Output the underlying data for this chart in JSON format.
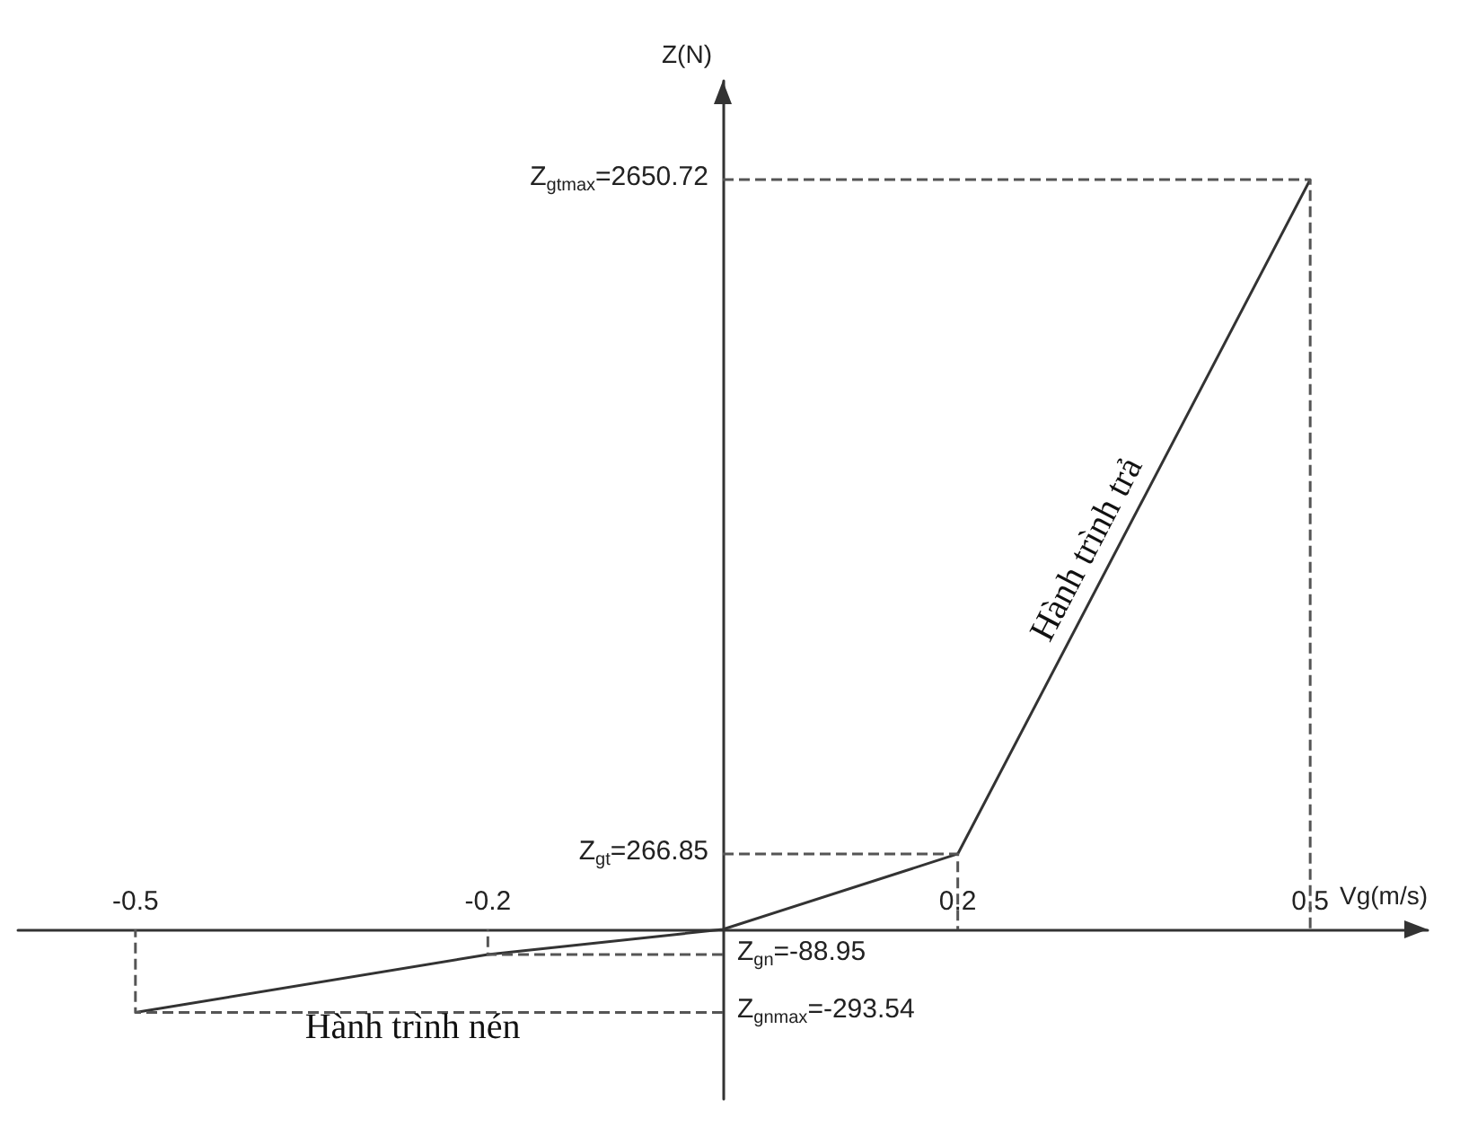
{
  "chart_data": {
    "type": "line",
    "x": [
      -0.5,
      -0.2,
      0,
      0.2,
      0.5
    ],
    "marker": "none",
    "line_style": "solid",
    "series": [
      {
        "values": [
          -293.54,
          -88.95,
          0,
          266.85,
          2650.72
        ],
        "color": "#333333"
      },
      {
        "x": [
          0,
          0.5,
          0.5
        ],
        "values": [
          2650.72,
          2650.72,
          0
        ],
        "color": "#555555",
        "line_style": "dashed"
      },
      {
        "x": [
          0,
          0.2,
          0.2
        ],
        "values": [
          266.85,
          266.85,
          0
        ],
        "color": "#555555",
        "line_style": "dashed"
      },
      {
        "x": [
          0,
          -0.2,
          -0.2
        ],
        "values": [
          -88.95,
          -88.95,
          0
        ],
        "color": "#555555",
        "line_style": "dashed"
      },
      {
        "x": [
          0,
          -0.5,
          -0.5
        ],
        "values": [
          -293.54,
          -293.54,
          0
        ],
        "color": "#555555",
        "line_style": "dashed"
      }
    ],
    "xlabel": "Vg(m/s)",
    "ylabel": "Z(N)",
    "xlim": [
      -0.6,
      0.6
    ],
    "xticks": [
      -0.5,
      -0.2,
      0.2,
      0.5
    ],
    "ylim": [
      -600,
      3000
    ],
    "yticks": [
      {
        "value": 2650.72,
        "label": "Z$_{gtmax}$=2650.72"
      },
      {
        "value": 266.85,
        "label": "Z$_{gt}$=266.85"
      }
    ],
    "y2lim": [
      -600,
      3000
    ],
    "y2ticks": [
      {
        "value": -88.95,
        "label": "Z$_{gn}$=-88.95"
      },
      {
        "value": -293.54,
        "label": "Z$_{gnmax}$=-293.54"
      }
    ],
    "annotations": [
      {
        "text": "Hành trình trả",
        "x": 0.33,
        "y": 1300
      },
      "Hành trình nén"
    ]
  }
}
